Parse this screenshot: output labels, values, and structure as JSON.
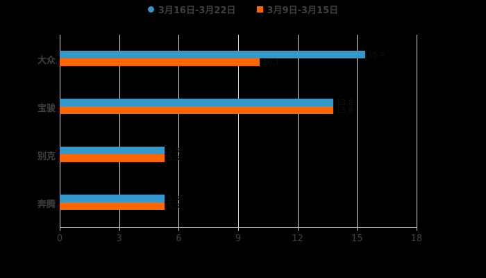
{
  "chart_data": {
    "type": "bar",
    "orientation": "horizontal",
    "title": "",
    "xlabel": "",
    "ylabel": "",
    "categories": [
      "大众",
      "宝骏",
      "别克",
      "奔腾"
    ],
    "series": [
      {
        "name": "3月16日-3月22日",
        "color": "#3399cc",
        "values": [
          15.4,
          13.8,
          5.3,
          5.3
        ]
      },
      {
        "name": "3月9日-3月15日",
        "color": "#ff6600",
        "values": [
          10.1,
          13.8,
          5.3,
          5.3
        ]
      }
    ],
    "xlim": [
      0,
      18
    ],
    "xticks": [
      "0",
      "3",
      "6",
      "9",
      "12",
      "15",
      "18"
    ],
    "grid": true,
    "legend_position": "top"
  },
  "legend": {
    "items": [
      {
        "label": "3月16日-3月22日",
        "color": "#3399cc",
        "marker": "circle"
      },
      {
        "label": "3月9日-3月15日",
        "color": "#ff6600",
        "marker": "square"
      }
    ]
  }
}
